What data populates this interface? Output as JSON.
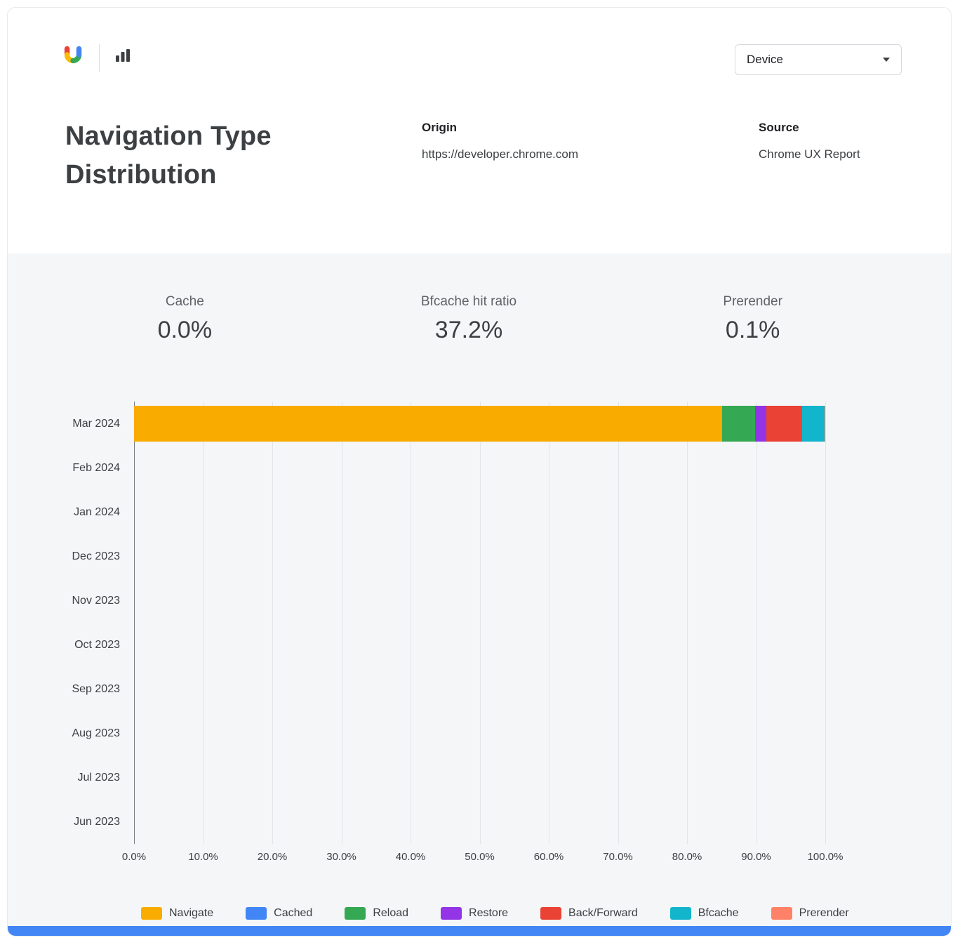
{
  "header": {
    "device_selector": {
      "label": "Device"
    },
    "title": "Navigation Type Distribution",
    "origin": {
      "label": "Origin",
      "value": "https://developer.chrome.com"
    },
    "source": {
      "label": "Source",
      "value": "Chrome UX Report"
    }
  },
  "kpis": [
    {
      "label": "Cache",
      "value": "0.0%"
    },
    {
      "label": "Bfcache hit ratio",
      "value": "37.2%"
    },
    {
      "label": "Prerender",
      "value": "0.1%"
    }
  ],
  "colors": {
    "navigate": "#F9AB00",
    "cached": "#4285F4",
    "reload": "#34A853",
    "restore": "#9334E6",
    "back_forward": "#EA4335",
    "bfcache": "#12B5CB",
    "prerender": "#FF8168",
    "footer_bar": "#4285F4"
  },
  "chart_data": {
    "type": "bar",
    "orientation": "horizontal",
    "stacked": true,
    "title": "Navigation Type Distribution",
    "categories": [
      "Mar 2024",
      "Feb 2024",
      "Jan 2024",
      "Dec 2023",
      "Nov 2023",
      "Oct 2023",
      "Sep 2023",
      "Aug 2023",
      "Jul 2023",
      "Jun 2023"
    ],
    "series": [
      {
        "name": "Navigate",
        "color": "#F9AB00",
        "values": [
          85.1,
          0,
          0,
          0,
          0,
          0,
          0,
          0,
          0,
          0
        ]
      },
      {
        "name": "Cached",
        "color": "#4285F4",
        "values": [
          0,
          0,
          0,
          0,
          0,
          0,
          0,
          0,
          0,
          0
        ]
      },
      {
        "name": "Reload",
        "color": "#34A853",
        "values": [
          4.7,
          0,
          0,
          0,
          0,
          0,
          0,
          0,
          0,
          0
        ]
      },
      {
        "name": "Restore",
        "color": "#9334E6",
        "values": [
          1.7,
          0,
          0,
          0,
          0,
          0,
          0,
          0,
          0,
          0
        ]
      },
      {
        "name": "Back/Forward",
        "color": "#EA4335",
        "values": [
          5.2,
          0,
          0,
          0,
          0,
          0,
          0,
          0,
          0,
          0
        ]
      },
      {
        "name": "Bfcache",
        "color": "#12B5CB",
        "values": [
          3.2,
          0,
          0,
          0,
          0,
          0,
          0,
          0,
          0,
          0
        ]
      },
      {
        "name": "Prerender",
        "color": "#FF8168",
        "values": [
          0.1,
          0,
          0,
          0,
          0,
          0,
          0,
          0,
          0,
          0
        ]
      }
    ],
    "x_ticks": [
      "0.0%",
      "10.0%",
      "20.0%",
      "30.0%",
      "40.0%",
      "50.0%",
      "60.0%",
      "70.0%",
      "80.0%",
      "90.0%",
      "100.0%"
    ],
    "xlim": [
      0,
      100
    ],
    "grid": true,
    "legend_position": "bottom"
  }
}
